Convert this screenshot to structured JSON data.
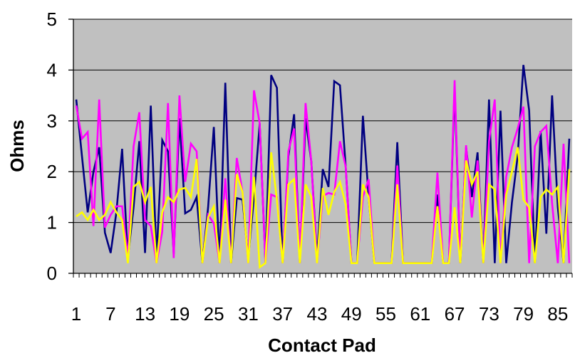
{
  "chart_data": {
    "type": "line",
    "title": "",
    "xlabel": "Contact Pad",
    "ylabel": "Ohms",
    "ylim": [
      0,
      5
    ],
    "yticks": [
      "0",
      "1",
      "2",
      "3",
      "4",
      "5"
    ],
    "xtick_labels": [
      "1",
      "7",
      "13",
      "19",
      "25",
      "31",
      "37",
      "43",
      "49",
      "55",
      "61",
      "67",
      "73",
      "79",
      "85"
    ],
    "grid": true,
    "legend": "none",
    "plot_background": "#C0C0C0",
    "x": [
      1,
      2,
      3,
      4,
      5,
      6,
      7,
      8,
      9,
      10,
      11,
      12,
      13,
      14,
      15,
      16,
      17,
      18,
      19,
      20,
      21,
      22,
      23,
      24,
      25,
      26,
      27,
      28,
      29,
      30,
      31,
      32,
      33,
      34,
      35,
      36,
      37,
      38,
      39,
      40,
      41,
      42,
      43,
      44,
      45,
      46,
      47,
      48,
      49,
      50,
      51,
      52,
      53,
      54,
      55,
      56,
      57,
      58,
      59,
      60,
      61,
      62,
      63,
      64,
      65,
      66,
      67,
      68,
      69,
      70,
      71,
      72,
      73,
      74,
      75,
      76,
      77,
      78,
      79,
      80,
      81,
      82,
      83,
      84,
      85,
      86,
      87
    ],
    "series": [
      {
        "color": "#000080",
        "values": [
          3.42,
          2.3,
          1.2,
          2.0,
          2.48,
          0.8,
          0.4,
          1.2,
          2.45,
          0.3,
          1.3,
          2.6,
          0.4,
          3.3,
          0.3,
          2.62,
          2.4,
          0.38,
          3.05,
          1.18,
          1.25,
          1.5,
          0.2,
          1.3,
          2.88,
          0.2,
          3.75,
          0.2,
          1.48,
          1.45,
          0.3,
          1.5,
          2.95,
          0.2,
          3.9,
          3.65,
          0.2,
          2.3,
          3.13,
          0.2,
          3.05,
          2.2,
          0.3,
          2.05,
          1.7,
          3.78,
          3.7,
          2.1,
          0.2,
          0.2,
          3.1,
          1.5,
          0.2,
          0.2,
          0.2,
          0.2,
          2.58,
          0.2,
          0.2,
          0.2,
          0.2,
          0.2,
          0.2,
          1.55,
          0.2,
          0.2,
          3.65,
          0.2,
          2.48,
          1.5,
          2.38,
          0.2,
          3.42,
          0.2,
          3.2,
          0.2,
          1.4,
          2.3,
          4.1,
          3.2,
          0.2,
          2.8,
          0.78,
          3.5,
          1.3,
          0.2,
          2.65
        ]
      },
      {
        "color": "#FF00FF",
        "values": [
          3.3,
          2.65,
          2.78,
          0.93,
          3.42,
          0.9,
          1.15,
          1.32,
          1.32,
          0.3,
          2.5,
          3.17,
          1.05,
          0.93,
          0.2,
          0.82,
          3.35,
          0.3,
          3.5,
          1.8,
          2.55,
          2.4,
          0.2,
          1.15,
          0.98,
          0.2,
          1.87,
          0.2,
          2.27,
          1.6,
          0.2,
          3.6,
          2.95,
          0.2,
          1.55,
          1.5,
          0.2,
          2.4,
          2.85,
          0.2,
          3.35,
          2.2,
          0.2,
          1.52,
          1.58,
          1.55,
          2.6,
          2.1,
          0.2,
          0.2,
          1.5,
          1.85,
          0.2,
          0.2,
          0.2,
          0.2,
          2.12,
          0.2,
          0.2,
          0.2,
          0.2,
          0.2,
          0.2,
          1.98,
          0.2,
          0.2,
          3.8,
          0.2,
          2.52,
          1.1,
          2.22,
          0.2,
          2.6,
          3.42,
          0.2,
          1.9,
          2.48,
          2.85,
          3.28,
          0.2,
          2.5,
          2.78,
          2.9,
          1.38,
          0.2,
          2.55,
          0.2
        ]
      },
      {
        "color": "#FFFF00",
        "values": [
          1.12,
          1.2,
          1.05,
          1.25,
          1.05,
          1.15,
          1.4,
          1.2,
          1.05,
          0.2,
          1.7,
          1.8,
          1.4,
          1.7,
          0.2,
          1.2,
          1.5,
          1.4,
          1.65,
          1.68,
          1.5,
          2.25,
          0.2,
          1.1,
          1.32,
          0.2,
          1.45,
          0.2,
          1.95,
          1.6,
          0.2,
          1.9,
          0.12,
          0.2,
          2.38,
          1.45,
          0.2,
          1.75,
          1.85,
          0.2,
          1.75,
          1.5,
          0.2,
          1.68,
          1.15,
          1.6,
          1.8,
          1.35,
          0.2,
          0.2,
          1.75,
          1.5,
          0.2,
          0.2,
          0.2,
          0.2,
          1.75,
          0.2,
          0.2,
          0.2,
          0.2,
          0.2,
          0.2,
          1.32,
          0.2,
          0.2,
          1.3,
          0.2,
          2.22,
          1.75,
          2.0,
          0.2,
          1.75,
          1.65,
          0.2,
          1.55,
          2.0,
          2.48,
          1.45,
          1.3,
          0.2,
          1.5,
          1.65,
          1.55,
          1.7,
          0.2,
          2.05
        ]
      }
    ]
  }
}
